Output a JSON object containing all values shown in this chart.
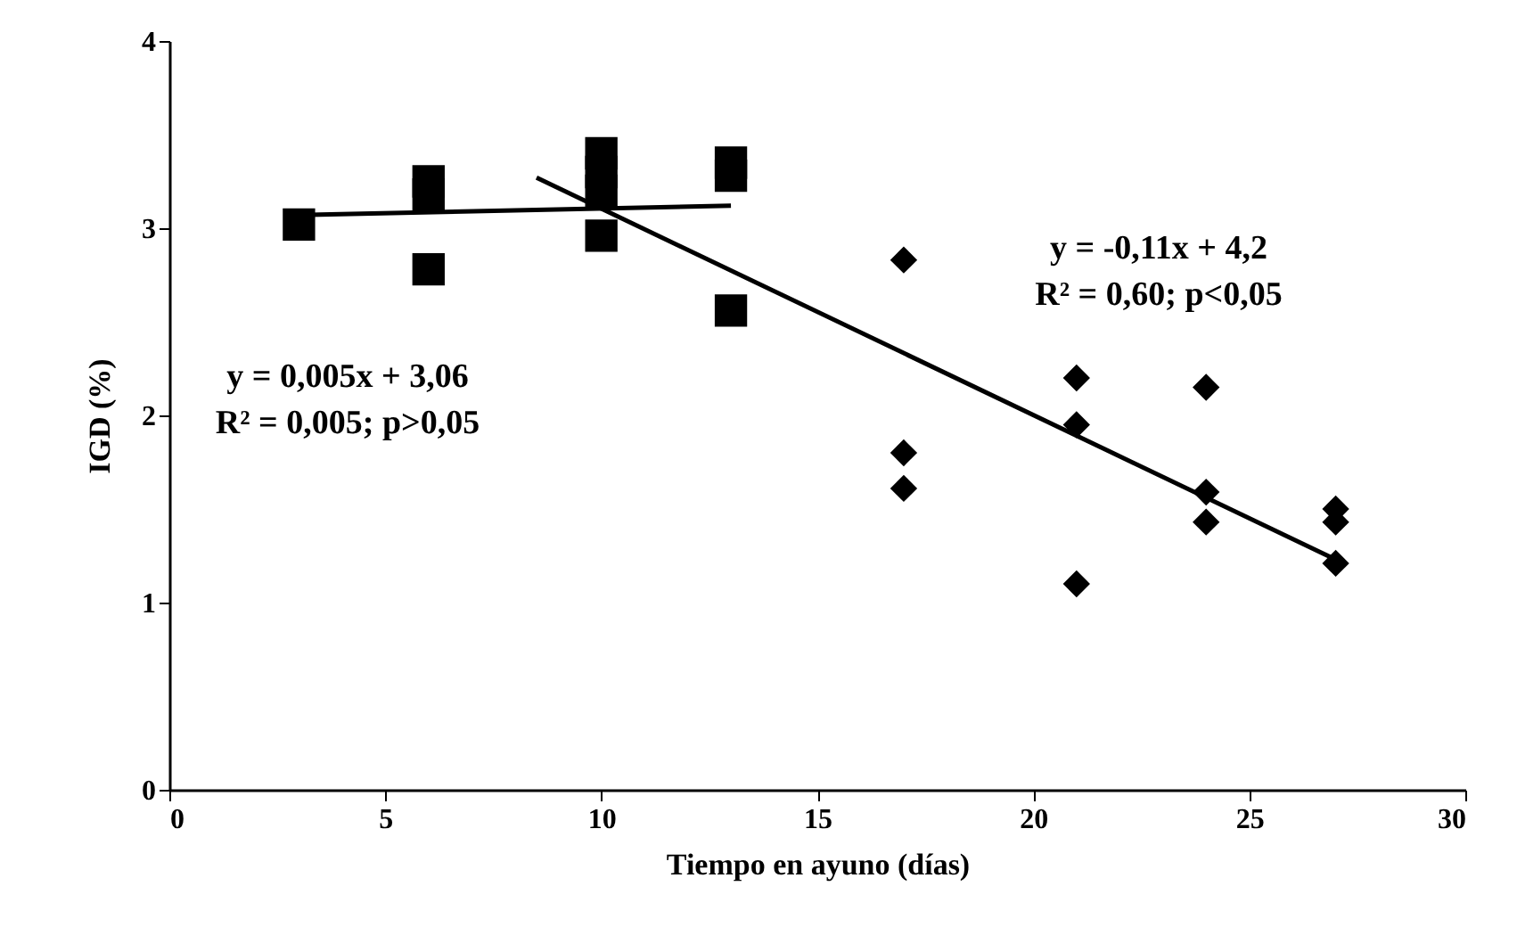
{
  "chart_data": {
    "type": "scatter",
    "xlabel": "Tiempo en ayuno (días)",
    "ylabel": "IGD (%)",
    "xlim": [
      0,
      30
    ],
    "xticks": [
      0,
      5,
      10,
      15,
      20,
      25,
      30
    ],
    "ylim": [
      0,
      4
    ],
    "yticks": [
      0,
      1,
      2,
      3,
      4
    ],
    "grid": false,
    "series": [
      {
        "marker": "square",
        "color": "#000000",
        "x": [
          3,
          6,
          6,
          6,
          10,
          10,
          10,
          10,
          13,
          13,
          13
        ],
        "values": [
          3.02,
          3.25,
          3.18,
          2.78,
          3.4,
          3.3,
          3.2,
          2.96,
          3.35,
          3.28,
          2.56
        ]
      },
      {
        "type": "scatter",
        "marker": "diamond",
        "color": "#000000",
        "x": [
          17,
          17,
          17,
          21,
          21,
          21,
          24,
          24,
          24,
          27,
          27,
          27
        ],
        "values": [
          2.83,
          1.8,
          1.61,
          2.2,
          1.95,
          1.1,
          2.15,
          1.59,
          1.43,
          1.5,
          1.43,
          1.21
        ]
      },
      {
        "type": "line",
        "color": "#000000",
        "x": [
          3,
          13
        ],
        "values": [
          3.07,
          3.12
        ]
      },
      {
        "type": "line",
        "color": "#000000",
        "x": [
          8.5,
          27
        ],
        "values": [
          3.27,
          1.23
        ]
      }
    ],
    "annotations": [
      "y = 0,005x + 3,06",
      "R² = 0,005; p>0,05",
      "y = -0,11x + 4,2",
      "R² = 0,60; p<0,05"
    ]
  }
}
